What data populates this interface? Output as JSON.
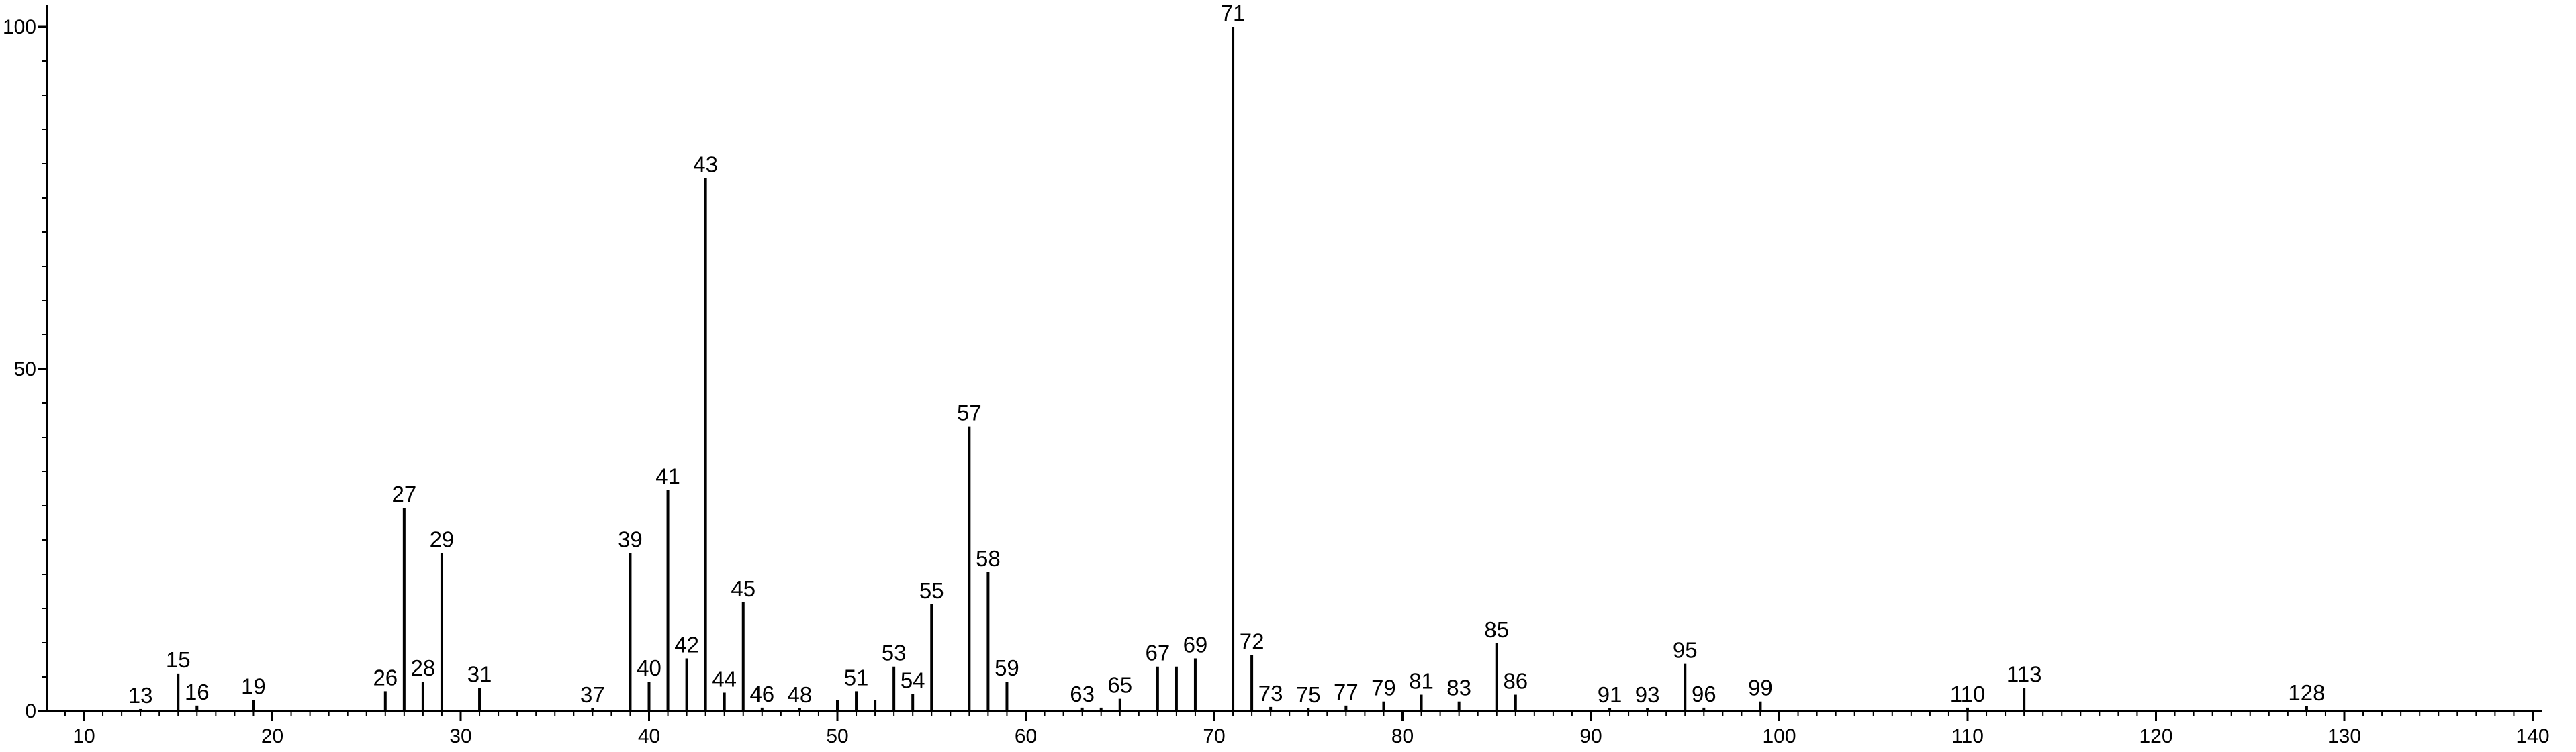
{
  "chart_data": {
    "type": "bar",
    "title": "",
    "xlabel": "",
    "ylabel": "",
    "xlim": [
      7,
      141
    ],
    "ylim": [
      0,
      100
    ],
    "x_ticks": [
      10,
      20,
      30,
      40,
      50,
      60,
      70,
      80,
      90,
      100,
      110,
      120,
      130,
      140
    ],
    "y_ticks": [
      0,
      50,
      100
    ],
    "bar_color": "#000000",
    "axis_color": "#000000",
    "peaks": [
      {
        "x": 13,
        "y": 0.3,
        "label": "13"
      },
      {
        "x": 15,
        "y": 5.5,
        "label": "15"
      },
      {
        "x": 16,
        "y": 0.8,
        "label": "16"
      },
      {
        "x": 19,
        "y": 1.6,
        "label": "19"
      },
      {
        "x": 26,
        "y": 2.9,
        "label": "26"
      },
      {
        "x": 27,
        "y": 29.7,
        "label": "27"
      },
      {
        "x": 28,
        "y": 4.3,
        "label": "28"
      },
      {
        "x": 29,
        "y": 23.1,
        "label": "29"
      },
      {
        "x": 31,
        "y": 3.4,
        "label": "31"
      },
      {
        "x": 37,
        "y": 0.4,
        "label": "37"
      },
      {
        "x": 39,
        "y": 23.1,
        "label": "39"
      },
      {
        "x": 40,
        "y": 4.3,
        "label": "40"
      },
      {
        "x": 41,
        "y": 32.3,
        "label": "41"
      },
      {
        "x": 42,
        "y": 7.7,
        "label": "42"
      },
      {
        "x": 43,
        "y": 77.9,
        "label": "43"
      },
      {
        "x": 44,
        "y": 2.7,
        "label": "44"
      },
      {
        "x": 45,
        "y": 15.9,
        "label": "45"
      },
      {
        "x": 46,
        "y": 0.5,
        "label": "46"
      },
      {
        "x": 48,
        "y": 0.4,
        "label": "48"
      },
      {
        "x": 50,
        "y": 1.6,
        "label": ""
      },
      {
        "x": 51,
        "y": 2.9,
        "label": "51"
      },
      {
        "x": 52,
        "y": 1.6,
        "label": ""
      },
      {
        "x": 53,
        "y": 6.5,
        "label": "53"
      },
      {
        "x": 54,
        "y": 2.5,
        "label": "54"
      },
      {
        "x": 55,
        "y": 15.6,
        "label": "55"
      },
      {
        "x": 57,
        "y": 41.6,
        "label": "57"
      },
      {
        "x": 58,
        "y": 20.3,
        "label": "58"
      },
      {
        "x": 59,
        "y": 4.3,
        "label": "59"
      },
      {
        "x": 63,
        "y": 0.5,
        "label": "63"
      },
      {
        "x": 64,
        "y": 0.5,
        "label": ""
      },
      {
        "x": 65,
        "y": 1.8,
        "label": "65"
      },
      {
        "x": 67,
        "y": 6.5,
        "label": "67"
      },
      {
        "x": 68,
        "y": 6.5,
        "label": ""
      },
      {
        "x": 69,
        "y": 7.7,
        "label": "69"
      },
      {
        "x": 71,
        "y": 100,
        "label": "71"
      },
      {
        "x": 72,
        "y": 8.2,
        "label": "72"
      },
      {
        "x": 73,
        "y": 0.6,
        "label": "73"
      },
      {
        "x": 75,
        "y": 0.4,
        "label": "75"
      },
      {
        "x": 77,
        "y": 0.8,
        "label": "77"
      },
      {
        "x": 79,
        "y": 1.4,
        "label": "79"
      },
      {
        "x": 81,
        "y": 2.4,
        "label": "81"
      },
      {
        "x": 83,
        "y": 1.4,
        "label": "83"
      },
      {
        "x": 85,
        "y": 9.9,
        "label": "85"
      },
      {
        "x": 86,
        "y": 2.4,
        "label": "86"
      },
      {
        "x": 91,
        "y": 0.4,
        "label": "91"
      },
      {
        "x": 93,
        "y": 0.4,
        "label": "93"
      },
      {
        "x": 95,
        "y": 6.9,
        "label": "95"
      },
      {
        "x": 96,
        "y": 0.5,
        "label": "96"
      },
      {
        "x": 99,
        "y": 1.4,
        "label": "99"
      },
      {
        "x": 110,
        "y": 0.5,
        "label": "110"
      },
      {
        "x": 113,
        "y": 3.4,
        "label": "113"
      },
      {
        "x": 128,
        "y": 0.7,
        "label": "128"
      }
    ]
  }
}
